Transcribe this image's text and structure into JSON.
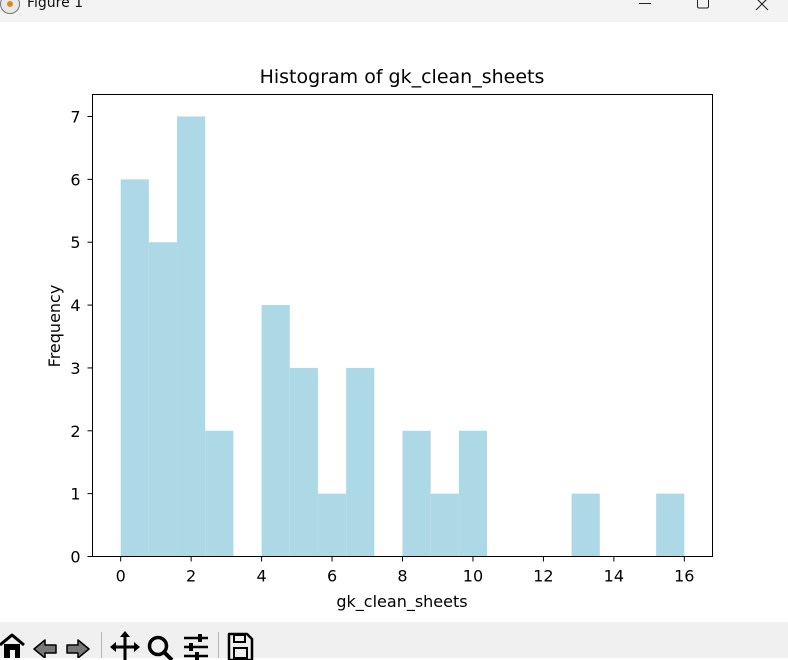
{
  "window": {
    "title": "Figure 1",
    "controls": [
      "minimize",
      "maximize",
      "close"
    ]
  },
  "toolbar": {
    "buttons": [
      "home-icon",
      "back-icon",
      "forward-icon",
      "pan-icon",
      "zoom-icon",
      "configure-subplots-icon",
      "save-icon"
    ]
  },
  "colors": {
    "bar": "#add8e6",
    "axes": "#000000",
    "background": "#ffffff"
  },
  "chart_data": {
    "type": "bar",
    "title": "Histogram of gk_clean_sheets",
    "xlabel": "gk_clean_sheets",
    "ylabel": "Frequency",
    "bin_edges": [
      0,
      0.8,
      1.6,
      2.4,
      3.2,
      4.0,
      4.8,
      5.6,
      6.4,
      7.2,
      8.0,
      8.8,
      9.6,
      10.4,
      11.2,
      12.0,
      12.8,
      13.6,
      14.4,
      15.2,
      16.0
    ],
    "values": [
      6,
      5,
      7,
      2,
      0,
      4,
      3,
      1,
      3,
      0,
      2,
      1,
      2,
      0,
      0,
      0,
      1,
      0,
      0,
      1
    ],
    "xlim": [
      -0.8,
      16.8
    ],
    "ylim": [
      0,
      7.35
    ],
    "xticks": [
      0,
      2,
      4,
      6,
      8,
      10,
      12,
      14,
      16
    ],
    "yticks": [
      0,
      1,
      2,
      3,
      4,
      5,
      6,
      7
    ],
    "grid": false,
    "legend": false
  }
}
